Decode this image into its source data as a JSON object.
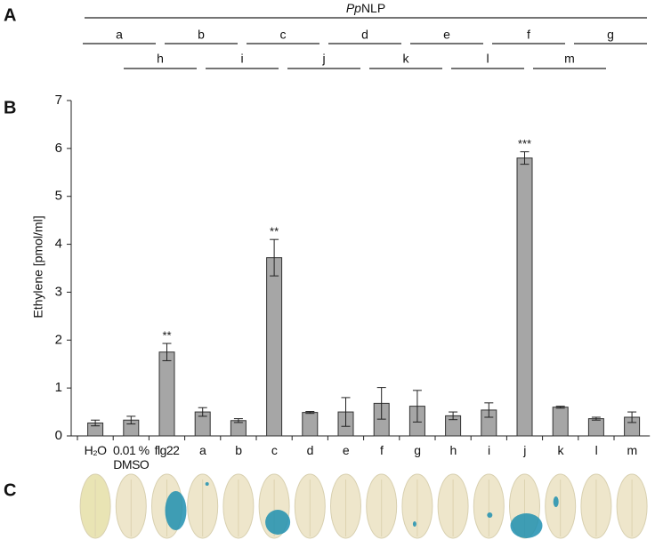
{
  "panel_labels": [
    "A",
    "B",
    "C"
  ],
  "peptide_map": {
    "title_italic": "Pp",
    "title_rest": "NLP",
    "row1": [
      "a",
      "b",
      "c",
      "d",
      "e",
      "f",
      "g"
    ],
    "row2": [
      "h",
      "i",
      "j",
      "k",
      "l",
      "m"
    ]
  },
  "chart_data": {
    "type": "bar",
    "y_label": "Ethylene [pmol/ml]",
    "categories": [
      "H₂O",
      "0.01 % DMSO",
      "flg22",
      "a",
      "b",
      "c",
      "d",
      "e",
      "f",
      "g",
      "h",
      "i",
      "j",
      "k",
      "l",
      "m"
    ],
    "values": [
      0.27,
      0.33,
      1.75,
      0.5,
      0.32,
      3.72,
      0.49,
      0.5,
      0.68,
      0.62,
      0.42,
      0.54,
      5.8,
      0.6,
      0.36,
      0.39
    ],
    "errors": [
      0.06,
      0.08,
      0.18,
      0.09,
      0.04,
      0.38,
      0.02,
      0.3,
      0.33,
      0.33,
      0.08,
      0.15,
      0.13,
      0.02,
      0.03,
      0.11
    ],
    "annotations": [
      null,
      null,
      "**",
      null,
      null,
      "**",
      null,
      null,
      null,
      null,
      null,
      null,
      "***",
      null,
      null,
      null
    ],
    "color": "#a6a6a6",
    "ylim": [
      0,
      7
    ],
    "yticks": [
      0,
      1,
      2,
      3,
      4,
      5,
      6,
      7
    ],
    "grid": false
  }
}
